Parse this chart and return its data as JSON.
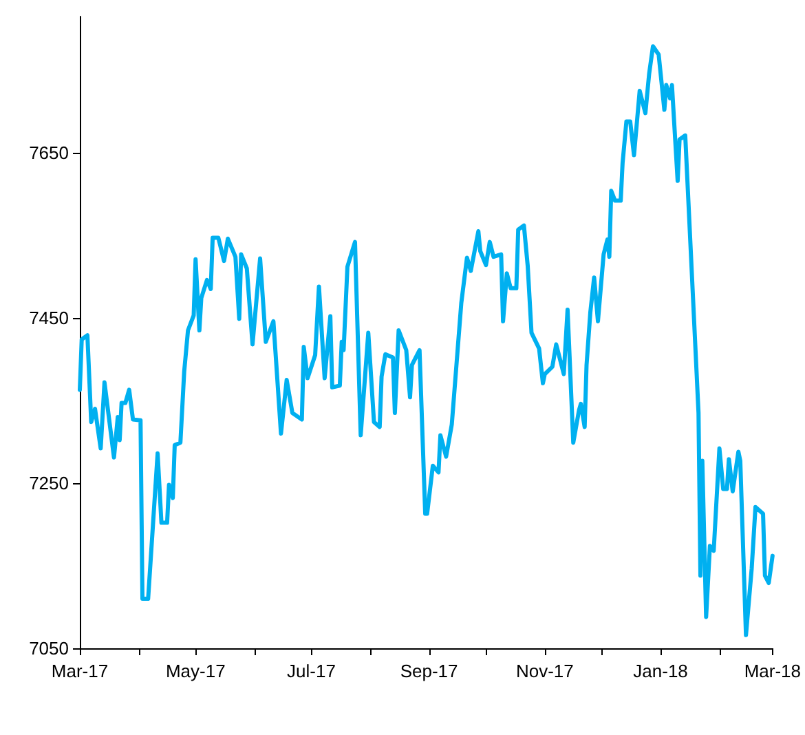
{
  "chart_data": {
    "type": "line",
    "x": [
      "2017-03-01",
      "2017-03-02",
      "2017-03-05",
      "2017-03-07",
      "2017-03-09",
      "2017-03-12",
      "2017-03-14",
      "2017-03-19",
      "2017-03-21",
      "2017-03-22",
      "2017-03-23",
      "2017-03-25",
      "2017-03-27",
      "2017-03-29",
      "2017-04-02",
      "2017-04-03",
      "2017-04-06",
      "2017-04-11",
      "2017-04-13",
      "2017-04-16",
      "2017-04-17",
      "2017-04-19",
      "2017-04-20",
      "2017-04-23",
      "2017-04-25",
      "2017-04-27",
      "2017-04-30",
      "2017-05-01",
      "2017-05-03",
      "2017-05-04",
      "2017-05-07",
      "2017-05-09",
      "2017-05-10",
      "2017-05-13",
      "2017-05-16",
      "2017-05-18",
      "2017-05-22",
      "2017-05-24",
      "2017-05-25",
      "2017-05-28",
      "2017-05-31",
      "2017-06-04",
      "2017-06-07",
      "2017-06-11",
      "2017-06-15",
      "2017-06-18",
      "2017-06-21",
      "2017-06-26",
      "2017-06-27",
      "2017-06-29",
      "2017-07-03",
      "2017-07-05",
      "2017-07-08",
      "2017-07-11",
      "2017-07-12",
      "2017-07-16",
      "2017-07-17",
      "2017-07-18",
      "2017-07-20",
      "2017-07-24",
      "2017-07-27",
      "2017-07-31",
      "2017-08-03",
      "2017-08-06",
      "2017-08-07",
      "2017-08-09",
      "2017-08-13",
      "2017-08-14",
      "2017-08-16",
      "2017-08-20",
      "2017-08-22",
      "2017-08-23",
      "2017-08-27",
      "2017-08-30",
      "2017-08-31",
      "2017-09-03",
      "2017-09-06",
      "2017-09-07",
      "2017-09-10",
      "2017-09-13",
      "2017-09-18",
      "2017-09-21",
      "2017-09-23",
      "2017-09-27",
      "2017-09-28",
      "2017-10-01",
      "2017-10-03",
      "2017-10-05",
      "2017-10-09",
      "2017-10-10",
      "2017-10-12",
      "2017-10-14",
      "2017-10-17",
      "2017-10-18",
      "2017-10-21",
      "2017-10-23",
      "2017-10-25",
      "2017-10-29",
      "2017-10-31",
      "2017-11-01",
      "2017-11-05",
      "2017-11-07",
      "2017-11-11",
      "2017-11-13",
      "2017-11-16",
      "2017-11-19",
      "2017-11-20",
      "2017-11-22",
      "2017-11-23",
      "2017-11-25",
      "2017-11-27",
      "2017-11-29",
      "2017-12-02",
      "2017-12-04",
      "2017-12-05",
      "2017-12-06",
      "2017-12-08",
      "2017-12-11",
      "2017-12-12",
      "2017-12-14",
      "2017-12-16",
      "2017-12-18",
      "2017-12-21",
      "2017-12-24",
      "2017-12-26",
      "2017-12-28",
      "2017-12-31",
      "2018-01-03",
      "2018-01-04",
      "2018-01-06",
      "2018-01-07",
      "2018-01-10",
      "2018-01-11",
      "2018-01-14",
      "2018-01-21",
      "2018-01-22",
      "2018-01-23",
      "2018-01-25",
      "2018-01-27",
      "2018-01-29",
      "2018-02-01",
      "2018-02-03",
      "2018-02-05",
      "2018-02-06",
      "2018-02-08",
      "2018-02-11",
      "2018-02-12",
      "2018-02-15",
      "2018-02-18",
      "2018-02-20",
      "2018-02-24",
      "2018-02-25",
      "2018-02-27",
      "2018-03-01"
    ],
    "series": [
      {
        "color": "#00b0f0",
        "values": [
          7363,
          7424,
          7429,
          7324,
          7340,
          7292,
          7372,
          7281,
          7330,
          7302,
          7347,
          7347,
          7363,
          7327,
          7326,
          7110,
          7110,
          7286,
          7202,
          7202,
          7248,
          7232,
          7296,
          7299,
          7385,
          7435,
          7453,
          7521,
          7435,
          7474,
          7496,
          7485,
          7547,
          7547,
          7519,
          7546,
          7524,
          7449,
          7527,
          7510,
          7418,
          7522,
          7421,
          7446,
          7310,
          7375,
          7335,
          7327,
          7415,
          7377,
          7405,
          7488,
          7377,
          7452,
          7366,
          7368,
          7421,
          7411,
          7512,
          7542,
          7308,
          7432,
          7324,
          7318,
          7379,
          7406,
          7402,
          7335,
          7435,
          7411,
          7354,
          7393,
          7411,
          7213,
          7213,
          7271,
          7263,
          7308,
          7282,
          7321,
          7468,
          7523,
          7507,
          7555,
          7531,
          7514,
          7542,
          7524,
          7527,
          7446,
          7504,
          7486,
          7486,
          7557,
          7562,
          7513,
          7432,
          7413,
          7371,
          7382,
          7391,
          7418,
          7382,
          7460,
          7299,
          7338,
          7346,
          7318,
          7393,
          7457,
          7499,
          7446,
          7527,
          7545,
          7524,
          7604,
          7592,
          7592,
          7638,
          7688,
          7688,
          7647,
          7725,
          7698,
          7746,
          7779,
          7769,
          7702,
          7732,
          7716,
          7732,
          7616,
          7666,
          7671,
          7335,
          7138,
          7277,
          7088,
          7174,
          7168,
          7292,
          7243,
          7243,
          7279,
          7240,
          7288,
          7277,
          7066,
          7146,
          7221,
          7213,
          7138,
          7129,
          7162
        ]
      }
    ],
    "xlim": [
      "2017-03-01",
      "2018-03-01"
    ],
    "xticks": [
      {
        "value": "2017-03-01",
        "label": "Mar-17"
      },
      {
        "value": "2017-04-01",
        "label": null
      },
      {
        "value": "2017-05-01",
        "label": "May-17"
      },
      {
        "value": "2017-06-01",
        "label": null
      },
      {
        "value": "2017-07-01",
        "label": "Jul-17"
      },
      {
        "value": "2017-08-01",
        "label": null
      },
      {
        "value": "2017-09-01",
        "label": "Sep-17"
      },
      {
        "value": "2017-10-01",
        "label": null
      },
      {
        "value": "2017-11-01",
        "label": "Nov-17"
      },
      {
        "value": "2017-12-01",
        "label": null
      },
      {
        "value": "2018-01-01",
        "label": "Jan-18"
      },
      {
        "value": "2018-02-01",
        "label": null
      },
      {
        "value": "2018-03-01",
        "label": "Mar-18"
      }
    ],
    "ylim": [
      7050,
      7815
    ],
    "yticks": [
      7050,
      7250,
      7450,
      7650
    ],
    "grid": false,
    "marker": "none",
    "line_style": "solid"
  }
}
